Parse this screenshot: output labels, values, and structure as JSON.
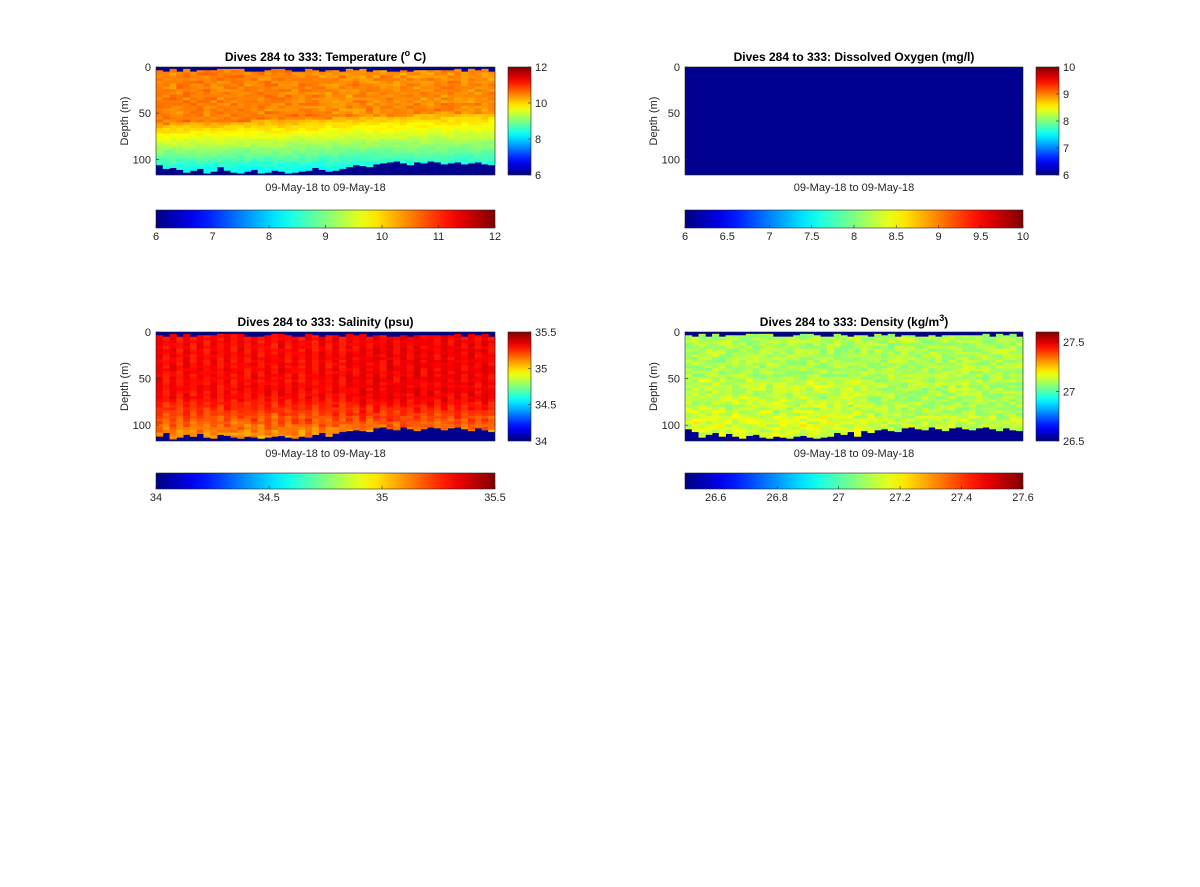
{
  "chart_data": [
    {
      "type": "heatmap",
      "id": "temperature",
      "title": "Dives 284 to 333: Temperature (",
      "title_sup": "o",
      "title_tail": " C)",
      "xlabel": "09-May-18 to 09-May-18",
      "ylabel": "Depth (m)",
      "ylim": [
        0,
        117
      ],
      "yticks": [
        0,
        50,
        100
      ],
      "n_dives": 50,
      "max_depth": [
        106,
        110,
        109,
        111,
        114,
        112,
        110,
        115,
        113,
        108,
        112,
        114,
        115,
        113,
        111,
        115,
        114,
        112,
        113,
        115,
        114,
        113,
        112,
        109,
        111,
        113,
        112,
        110,
        108,
        106,
        107,
        108,
        105,
        104,
        103,
        102,
        104,
        106,
        103,
        104,
        102,
        103,
        105,
        104,
        103,
        105,
        104,
        103,
        105,
        106
      ],
      "clim": [
        6,
        12
      ],
      "colorbar_ticks": [
        6,
        8,
        10,
        12
      ],
      "h_colorbar_ticks": [
        6,
        7,
        8,
        9,
        10,
        11,
        12
      ],
      "colormap": "jet",
      "missing_color": "#00008f"
    },
    {
      "type": "heatmap",
      "id": "oxygen",
      "title": "Dives 284 to 333: Dissolved Oxygen (mg/l)",
      "xlabel": "09-May-18 to 09-May-18",
      "ylabel": "Depth (m)",
      "ylim": [
        0,
        117
      ],
      "yticks": [
        0,
        50,
        100
      ],
      "n_dives": 50,
      "clim": [
        6,
        10
      ],
      "colorbar_ticks": [
        6,
        7,
        8,
        9,
        10
      ],
      "h_colorbar_ticks": [
        "6",
        "6.5",
        "7",
        "7.5",
        "8",
        "8.5",
        "9",
        "9.5",
        "10"
      ],
      "colormap": "jet",
      "missing_color": "#00008f",
      "values": "no data (uniform field)"
    },
    {
      "type": "heatmap",
      "id": "salinity",
      "title": "Dives 284 to 333: Salinity (psu)",
      "xlabel": "09-May-18 to 09-May-18",
      "ylabel": "Depth (m)",
      "ylim": [
        0,
        117
      ],
      "yticks": [
        0,
        50,
        100
      ],
      "n_dives": 50,
      "max_depth": [
        112,
        108,
        115,
        113,
        110,
        112,
        109,
        113,
        114,
        110,
        111,
        113,
        114,
        112,
        113,
        114,
        113,
        112,
        111,
        113,
        114,
        112,
        113,
        110,
        108,
        112,
        109,
        107,
        106,
        105,
        106,
        107,
        103,
        102,
        104,
        105,
        102,
        104,
        106,
        104,
        102,
        103,
        105,
        103,
        102,
        104,
        106,
        103,
        105,
        107
      ],
      "clim": [
        34,
        35.5
      ],
      "colorbar_ticks": [
        "34",
        "34.5",
        "35",
        "35.5"
      ],
      "h_colorbar_ticks": [
        "34",
        "34.5",
        "35",
        "35.5"
      ],
      "colormap": "jet",
      "missing_color": "#00008f"
    },
    {
      "type": "heatmap",
      "id": "density",
      "title": "Dives 284 to 333: Density (kg/m",
      "title_sup": "3",
      "title_tail": ")",
      "xlabel": "09-May-18 to 09-May-18",
      "ylabel": "Depth (m)",
      "ylim": [
        0,
        117
      ],
      "yticks": [
        0,
        50,
        100
      ],
      "n_dives": 50,
      "max_depth": [
        104,
        107,
        113,
        110,
        108,
        112,
        109,
        112,
        114,
        111,
        110,
        113,
        114,
        112,
        113,
        114,
        112,
        111,
        113,
        114,
        113,
        112,
        108,
        110,
        107,
        112,
        106,
        108,
        105,
        104,
        106,
        107,
        103,
        102,
        104,
        105,
        102,
        104,
        106,
        103,
        102,
        104,
        105,
        103,
        102,
        104,
        106,
        103,
        105,
        106
      ],
      "clim": [
        26.5,
        27.6
      ],
      "colorbar_ticks": [
        "26.5",
        "27",
        "27.5"
      ],
      "h_colorbar_ticks": [
        "26.6",
        "26.8",
        "27",
        "27.2",
        "27.4",
        "27.6"
      ],
      "colormap": "jet",
      "missing_color": "#00008f"
    }
  ]
}
